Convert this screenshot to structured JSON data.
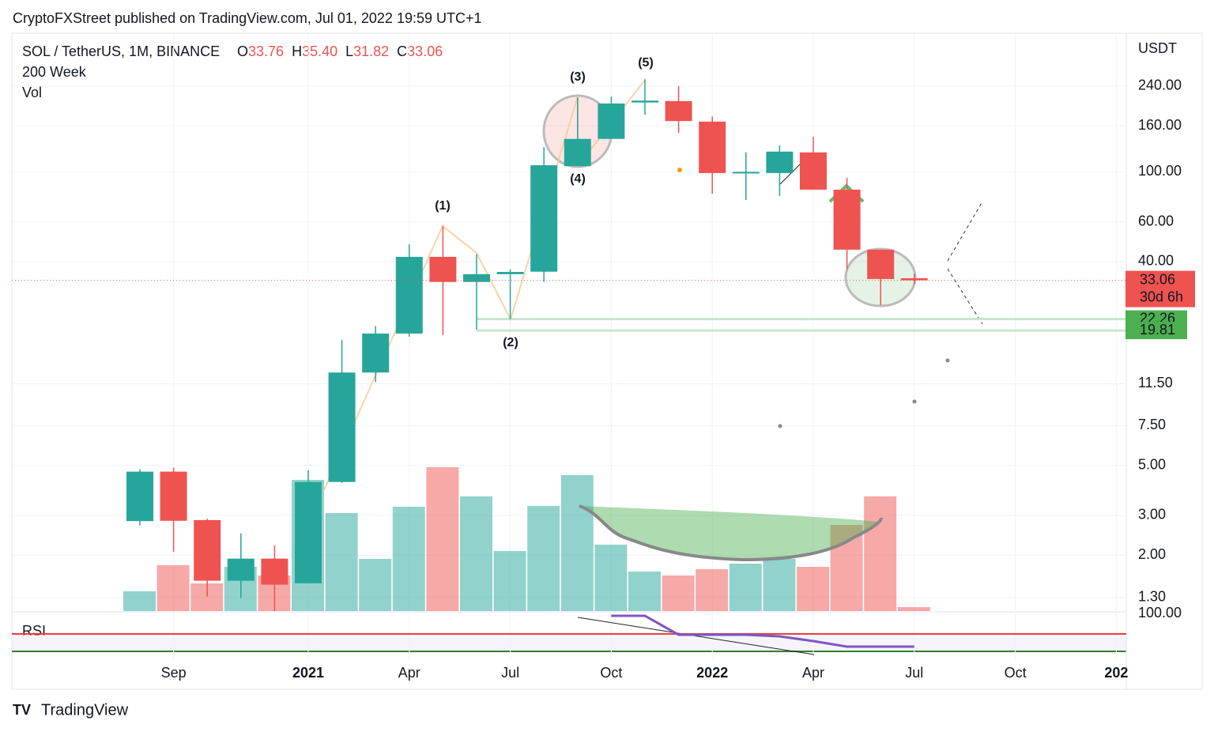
{
  "chart_data": {
    "type": "candlestick",
    "byline": "CryptoFXStreet published on TradingView.com, Jul 01, 2022 19:59 UTC+1",
    "symbol": "SOL / TetherUS, 1M, BINANCE",
    "ohlc_prefixes": [
      "O",
      "H",
      "L",
      "C"
    ],
    "ohlc_labels": [
      "33.76",
      "35.40",
      "31.82",
      "33.06"
    ],
    "indicators": [
      "200 Week",
      "Vol"
    ],
    "countdown": "30d 6h",
    "axis_unit": "USDT",
    "brand": "TradingView",
    "categories": [
      null,
      "Sep",
      null,
      null,
      null,
      "2021",
      null,
      null,
      "Apr",
      null,
      null,
      "Jul",
      null,
      null,
      "Oct",
      null,
      null,
      "2022",
      null,
      null,
      "Apr",
      null,
      null,
      "Jul"
    ],
    "extra_x_labels": [
      "Oct",
      "202"
    ],
    "open": [
      2.83,
      4.69,
      2.86,
      1.54,
      1.93,
      1.5,
      4.22,
      12.9,
      19.2,
      42.0,
      32.5,
      35.2,
      36.1,
      106,
      140,
      203,
      206,
      167,
      98.8,
      98.8,
      122,
      83.4,
      45.2,
      33.76
    ],
    "high": [
      4.8,
      4.88,
      2.9,
      2.5,
      2.21,
      4.75,
      18.0,
      20.7,
      47.8,
      57.6,
      43.1,
      37.0,
      129,
      214,
      216,
      257,
      240,
      176,
      122,
      131,
      143,
      94.2,
      45.2,
      35.4
    ],
    "low": [
      2.71,
      2.07,
      1.31,
      1.29,
      1.13,
      1.5,
      4.18,
      11.7,
      18.6,
      18.9,
      20.0,
      22.2,
      32.5,
      106,
      140,
      179,
      149,
      80,
      75.1,
      78.2,
      83.4,
      37.0,
      25.7,
      31.82
    ],
    "close": [
      4.69,
      2.84,
      1.54,
      1.93,
      1.48,
      4.22,
      12.9,
      19.2,
      42.0,
      32.5,
      35.2,
      36.0,
      107,
      140,
      201,
      207,
      168,
      98.8,
      100,
      123,
      83.4,
      45.2,
      33.5,
      33.06
    ],
    "up_color": "#26a69a",
    "down_color": "#ef5350",
    "log_scale": true,
    "ylim": [
      1.13,
      402
    ],
    "yticks": [
      {
        "value": 240,
        "label": "240.00"
      },
      {
        "value": 160,
        "label": "160.00"
      },
      {
        "value": 100,
        "label": "100.00"
      },
      {
        "value": 60,
        "label": "60.00"
      },
      {
        "value": 40,
        "label": "40.00"
      },
      {
        "value": 11.5,
        "label": "11.50"
      },
      {
        "value": 7.5,
        "label": "7.50"
      },
      {
        "value": 5,
        "label": "5.00"
      },
      {
        "value": 3,
        "label": "3.00"
      },
      {
        "value": 2,
        "label": "2.00"
      },
      {
        "value": 1.3,
        "label": "1.30"
      }
    ],
    "grid": true,
    "levels": [
      {
        "value": 22.26,
        "label": "22.26"
      },
      {
        "value": 19.81,
        "label": "19.81"
      }
    ],
    "volume": [
      25,
      58,
      35,
      56,
      45,
      166,
      124,
      66,
      132,
      182,
      145,
      76,
      133,
      172,
      84,
      50,
      45,
      53,
      60,
      66,
      56,
      109,
      145,
      5
    ],
    "vlim": [
      0,
      200
    ],
    "rsi_label": "RSI",
    "rsi": [
      null,
      null,
      null,
      null,
      null,
      null,
      null,
      null,
      null,
      null,
      null,
      null,
      null,
      null,
      96.5,
      96.5,
      68.7,
      68.7,
      68.7,
      66.4,
      59.4,
      51.3,
      51.3,
      51.3
    ],
    "rsi_color": "#7e57c2",
    "rsi_lim": [
      42,
      100
    ],
    "rsi_ticks": [
      {
        "value": 100,
        "label": "100.00"
      }
    ],
    "rsi_upper": 70,
    "annotations": [
      "(1)",
      "(2)",
      "(3)",
      "(4)",
      "(5)"
    ]
  }
}
